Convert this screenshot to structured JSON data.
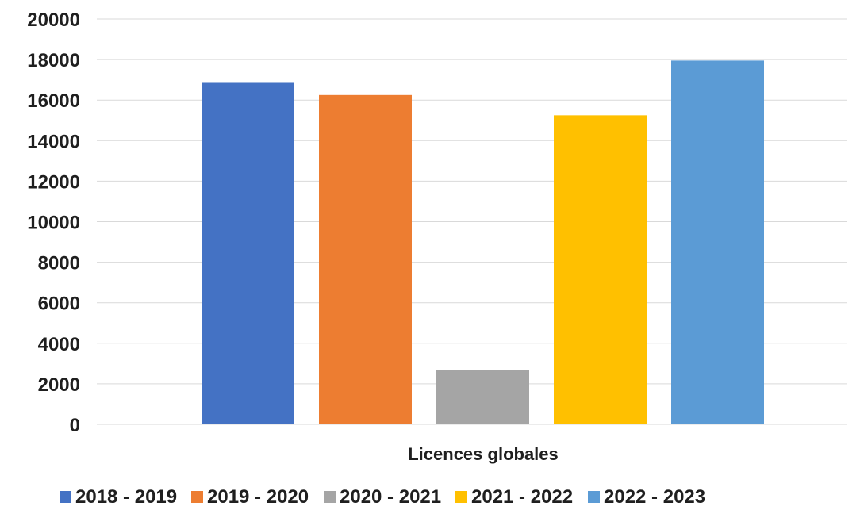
{
  "chart_data": {
    "type": "bar",
    "categories": [
      "Licences globales"
    ],
    "xlabel": "Licences globales",
    "ylim": [
      0,
      20000
    ],
    "yticks": [
      0,
      2000,
      4000,
      6000,
      8000,
      10000,
      12000,
      14000,
      16000,
      18000,
      20000
    ],
    "grid": true,
    "legend_position": "bottom",
    "series": [
      {
        "name": "2018 - 2019",
        "values": [
          16850
        ],
        "color": "#4472C4"
      },
      {
        "name": "2019 - 2020",
        "values": [
          16250
        ],
        "color": "#ED7D31"
      },
      {
        "name": "2020 - 2021",
        "values": [
          2700
        ],
        "color": "#A5A5A5"
      },
      {
        "name": "2021 - 2022",
        "values": [
          15250
        ],
        "color": "#FFC000"
      },
      {
        "name": "2022 - 2023",
        "values": [
          17950
        ],
        "color": "#5B9BD5"
      }
    ]
  }
}
